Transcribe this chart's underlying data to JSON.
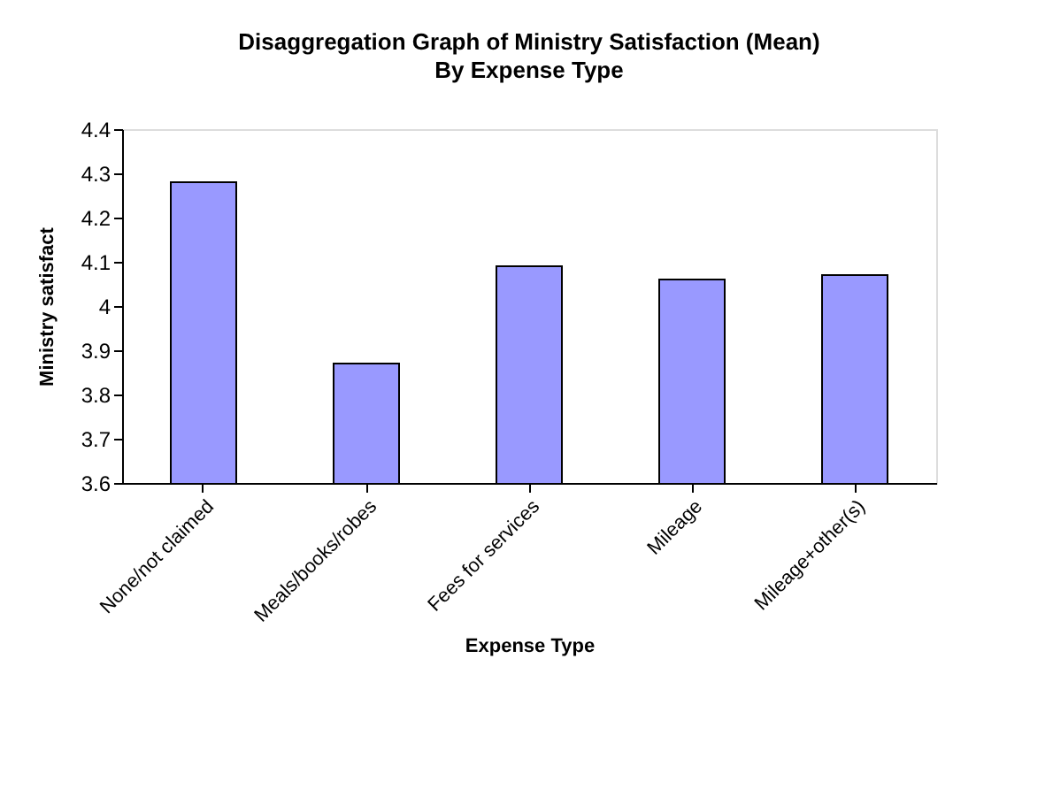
{
  "chart_data": {
    "type": "bar",
    "title": "Disaggregation Graph of Ministry Satisfaction (Mean)",
    "subtitle": "By Expense Type",
    "xlabel": "Expense Type",
    "ylabel": "Ministry satisfact",
    "categories": [
      "None/not claimed",
      "Meals/books/robes",
      "Fees for services",
      "Mileage",
      "Mileage+other(s)"
    ],
    "values": [
      4.28,
      3.87,
      4.09,
      4.06,
      4.07
    ],
    "color": "#9999ff",
    "ylim": [
      3.6,
      4.4
    ],
    "yticks": [
      3.6,
      3.7,
      3.8,
      3.9,
      4,
      4.1,
      4.2,
      4.3,
      4.4
    ],
    "grid": false
  }
}
